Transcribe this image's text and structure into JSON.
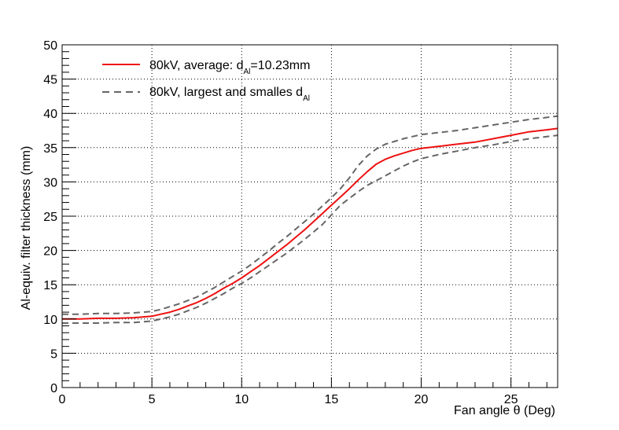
{
  "chart_data": {
    "type": "line",
    "xlabel_main": "Fan angle ",
    "xlabel_symbol": "θ",
    "xlabel_unit": " (Deg)",
    "ylabel": "Al-equiv. filter thickness (mm)",
    "xlim": [
      0,
      27.6
    ],
    "ylim": [
      0,
      50
    ],
    "x_ticks": [
      "0",
      "5",
      "10",
      "15",
      "20",
      "25"
    ],
    "y_ticks": [
      "0",
      "5",
      "10",
      "15",
      "20",
      "25",
      "30",
      "35",
      "40",
      "45",
      "50"
    ],
    "grid": true,
    "legend_position": "top-left",
    "colors": {
      "average": "#ee1111",
      "bounds": "#666666"
    },
    "legend": [
      {
        "text_main": "80kV, average: d",
        "text_sub": "Al",
        "text_tail": "=10.23mm"
      },
      {
        "text_main": "80kV, largest and smalles d",
        "text_sub": "Al",
        "text_tail": ""
      }
    ],
    "series": [
      {
        "key": "average",
        "style": "solid",
        "points": [
          [
            0,
            10.0
          ],
          [
            1,
            10.0
          ],
          [
            2,
            10.1
          ],
          [
            3,
            10.1
          ],
          [
            4,
            10.2
          ],
          [
            5,
            10.4
          ],
          [
            5.5,
            10.7
          ],
          [
            6,
            11.0
          ],
          [
            6.5,
            11.4
          ],
          [
            7,
            11.9
          ],
          [
            7.5,
            12.4
          ],
          [
            8,
            13.0
          ],
          [
            8.5,
            13.7
          ],
          [
            9,
            14.5
          ],
          [
            9.5,
            15.2
          ],
          [
            10,
            16.0
          ],
          [
            10.5,
            16.9
          ],
          [
            11,
            17.8
          ],
          [
            11.5,
            18.8
          ],
          [
            12,
            19.8
          ],
          [
            12.5,
            20.8
          ],
          [
            13,
            21.9
          ],
          [
            13.5,
            23.0
          ],
          [
            14,
            24.2
          ],
          [
            14.5,
            25.4
          ],
          [
            15,
            26.6
          ],
          [
            15.5,
            27.8
          ],
          [
            16,
            29.0
          ],
          [
            16.5,
            30.3
          ],
          [
            17,
            31.5
          ],
          [
            17.5,
            32.6
          ],
          [
            18,
            33.3
          ],
          [
            18.5,
            33.8
          ],
          [
            19,
            34.2
          ],
          [
            19.5,
            34.6
          ],
          [
            20,
            34.9
          ],
          [
            21,
            35.2
          ],
          [
            22,
            35.5
          ],
          [
            23,
            35.8
          ],
          [
            24,
            36.3
          ],
          [
            25,
            36.8
          ],
          [
            26,
            37.3
          ],
          [
            27,
            37.6
          ],
          [
            27.6,
            37.8
          ]
        ]
      },
      {
        "key": "upper",
        "style": "dashed",
        "points": [
          [
            0,
            10.7
          ],
          [
            1,
            10.7
          ],
          [
            2,
            10.8
          ],
          [
            3,
            10.8
          ],
          [
            4,
            10.9
          ],
          [
            5,
            11.1
          ],
          [
            5.5,
            11.4
          ],
          [
            6,
            11.8
          ],
          [
            6.5,
            12.2
          ],
          [
            7,
            12.7
          ],
          [
            7.5,
            13.2
          ],
          [
            8,
            13.9
          ],
          [
            8.5,
            14.6
          ],
          [
            9,
            15.4
          ],
          [
            9.5,
            16.2
          ],
          [
            10,
            17.0
          ],
          [
            10.5,
            17.9
          ],
          [
            11,
            18.9
          ],
          [
            11.5,
            19.9
          ],
          [
            12,
            21.0
          ],
          [
            12.5,
            22.0
          ],
          [
            13,
            23.1
          ],
          [
            13.5,
            24.2
          ],
          [
            14,
            25.3
          ],
          [
            14.5,
            26.5
          ],
          [
            15,
            27.7
          ],
          [
            15.5,
            29.0
          ],
          [
            16,
            30.6
          ],
          [
            16.5,
            32.4
          ],
          [
            17,
            33.8
          ],
          [
            17.5,
            34.8
          ],
          [
            18,
            35.5
          ],
          [
            18.5,
            35.9
          ],
          [
            19,
            36.3
          ],
          [
            19.5,
            36.6
          ],
          [
            20,
            36.9
          ],
          [
            21,
            37.2
          ],
          [
            22,
            37.5
          ],
          [
            23,
            37.9
          ],
          [
            24,
            38.3
          ],
          [
            25,
            38.7
          ],
          [
            26,
            39.1
          ],
          [
            27,
            39.4
          ],
          [
            27.6,
            39.6
          ]
        ]
      },
      {
        "key": "lower",
        "style": "dashed",
        "points": [
          [
            0,
            9.4
          ],
          [
            1,
            9.4
          ],
          [
            2,
            9.4
          ],
          [
            3,
            9.5
          ],
          [
            4,
            9.5
          ],
          [
            5,
            9.7
          ],
          [
            5.5,
            10.0
          ],
          [
            6,
            10.3
          ],
          [
            6.5,
            10.7
          ],
          [
            7,
            11.2
          ],
          [
            7.5,
            11.7
          ],
          [
            8,
            12.3
          ],
          [
            8.5,
            13.0
          ],
          [
            9,
            13.7
          ],
          [
            9.5,
            14.5
          ],
          [
            10,
            15.2
          ],
          [
            10.5,
            16.0
          ],
          [
            11,
            16.9
          ],
          [
            11.5,
            17.8
          ],
          [
            12,
            18.7
          ],
          [
            12.5,
            19.6
          ],
          [
            13,
            20.6
          ],
          [
            13.5,
            21.6
          ],
          [
            14,
            22.7
          ],
          [
            14.5,
            23.8
          ],
          [
            15,
            25.2
          ],
          [
            15.5,
            26.6
          ],
          [
            16,
            27.6
          ],
          [
            16.5,
            28.6
          ],
          [
            17,
            29.5
          ],
          [
            17.5,
            30.2
          ],
          [
            18,
            30.9
          ],
          [
            18.5,
            31.6
          ],
          [
            19,
            32.3
          ],
          [
            19.5,
            32.9
          ],
          [
            20,
            33.4
          ],
          [
            21,
            34.0
          ],
          [
            22,
            34.5
          ],
          [
            23,
            35.0
          ],
          [
            24,
            35.4
          ],
          [
            25,
            35.9
          ],
          [
            26,
            36.3
          ],
          [
            27,
            36.6
          ],
          [
            27.6,
            36.8
          ]
        ]
      }
    ]
  }
}
